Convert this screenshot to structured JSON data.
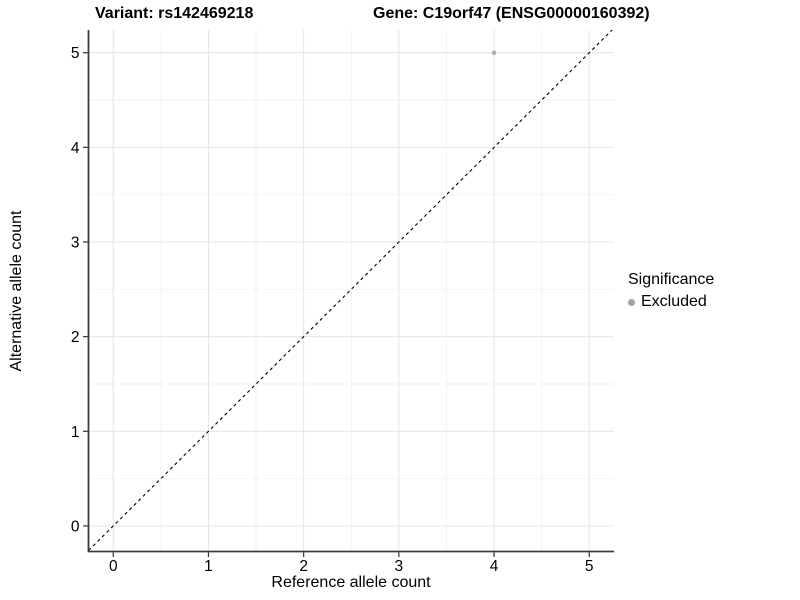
{
  "chart_data": {
    "type": "scatter",
    "title_left": "Variant: rs142469218",
    "title_right": "Gene: C19orf47 (ENSG00000160392)",
    "xlabel": "Reference allele count",
    "ylabel": "Alternative allele count",
    "xlim": [
      -0.26,
      5.26
    ],
    "ylim": [
      -0.27,
      5.24
    ],
    "xticks": [
      0,
      1,
      2,
      3,
      4,
      5
    ],
    "yticks": [
      0,
      1,
      2,
      3,
      4,
      5
    ],
    "minor_xticks": [
      0.5,
      1.5,
      2.5,
      3.5,
      4.5
    ],
    "minor_yticks": [
      0.5,
      1.5,
      2.5,
      3.5,
      4.5
    ],
    "grid": {
      "major_color": "#e4e4e4",
      "minor_color": "#f2f2f2",
      "on": true
    },
    "axis_line_color": "#3c3c3c",
    "tick_color": "#333333",
    "identity_line": {
      "type": "dashed",
      "color": "#000000",
      "from": -0.26,
      "to": 5.24
    },
    "series": [
      {
        "name": "Excluded",
        "color": "#b0b0b0",
        "points": [
          {
            "x": 4,
            "y": 5
          }
        ]
      }
    ],
    "legend": {
      "position": "right",
      "title": "Significance",
      "items": [
        {
          "label": "Excluded",
          "color": "#a3a3a3"
        }
      ]
    }
  }
}
